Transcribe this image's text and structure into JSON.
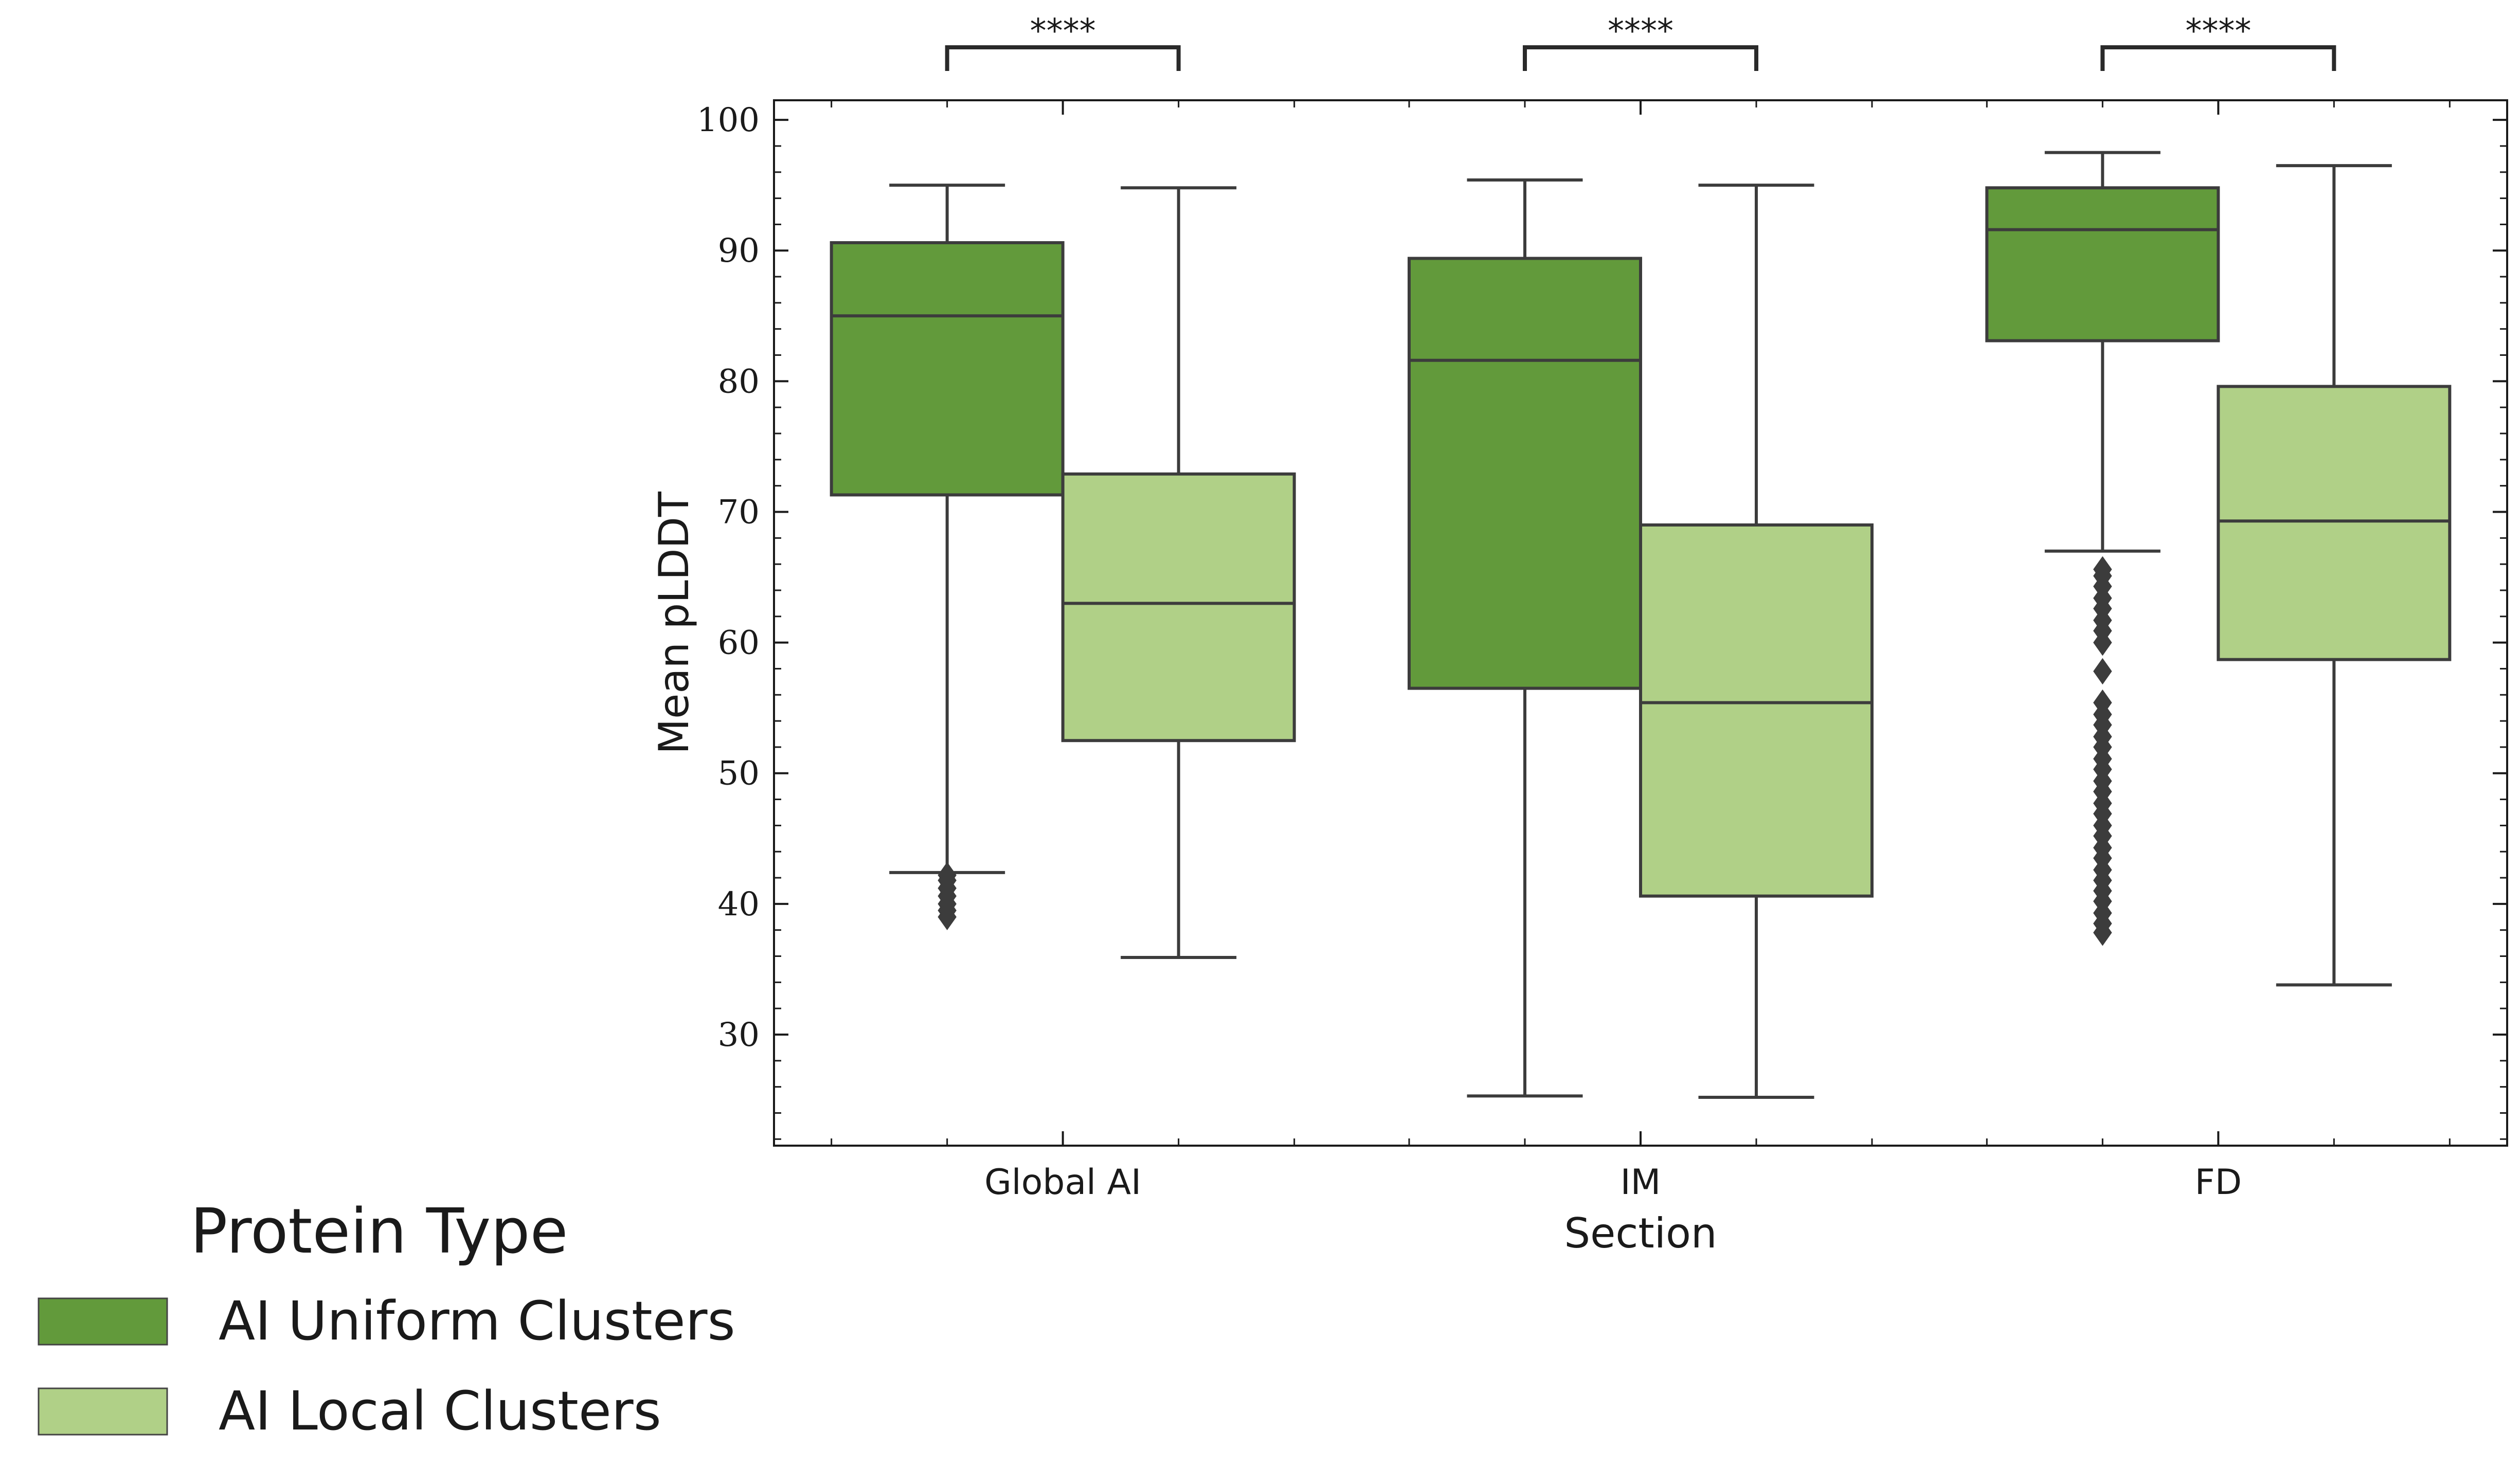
{
  "chart_data": {
    "type": "box",
    "xlabel": "Section",
    "ylabel": "Mean pLDDT",
    "ylim": [
      21.5,
      101.5
    ],
    "yticks": [
      30,
      40,
      50,
      60,
      70,
      80,
      90,
      100
    ],
    "categories": [
      "Global AI",
      "IM",
      "FD"
    ],
    "legend": {
      "title": "Protein Type",
      "placement": "bottom-left, outside plot"
    },
    "series": [
      {
        "name": "AI Uniform Clusters",
        "color": "#629a3b",
        "boxes": [
          {
            "whisker_low": 42.4,
            "q1": 71.3,
            "median": 85.0,
            "q3": 90.6,
            "whisker_high": 95.0,
            "outliers": [
              39.0,
              39.5,
              40.0,
              40.6,
              41.2,
              41.8,
              42.2
            ]
          },
          {
            "whisker_low": 25.3,
            "q1": 56.5,
            "median": 81.6,
            "q3": 89.4,
            "whisker_high": 95.4,
            "outliers": []
          },
          {
            "whisker_low": 67.0,
            "q1": 83.1,
            "median": 91.6,
            "q3": 94.8,
            "whisker_high": 97.5,
            "outliers": [
              37.8,
              38.5,
              39.3,
              40.2,
              41.0,
              41.8,
              42.6,
              43.5,
              44.3,
              45.2,
              46.0,
              46.9,
              47.7,
              48.6,
              49.4,
              50.3,
              51.1,
              52.0,
              52.8,
              53.7,
              54.5,
              55.4,
              57.8,
              60.0,
              60.9,
              61.7,
              62.6,
              63.4,
              64.3,
              65.1,
              65.6
            ]
          }
        ]
      },
      {
        "name": "AI Local Clusters",
        "color": "#b0d087",
        "boxes": [
          {
            "whisker_low": 35.9,
            "q1": 52.5,
            "median": 63.0,
            "q3": 72.9,
            "whisker_high": 94.8,
            "outliers": []
          },
          {
            "whisker_low": 25.2,
            "q1": 40.6,
            "median": 55.4,
            "q3": 69.0,
            "whisker_high": 95.0,
            "outliers": []
          },
          {
            "whisker_low": 33.8,
            "q1": 58.7,
            "median": 69.3,
            "q3": 79.6,
            "whisker_high": 96.5,
            "outliers": []
          }
        ]
      }
    ],
    "annotations": [
      "****",
      "****",
      "****"
    ]
  }
}
